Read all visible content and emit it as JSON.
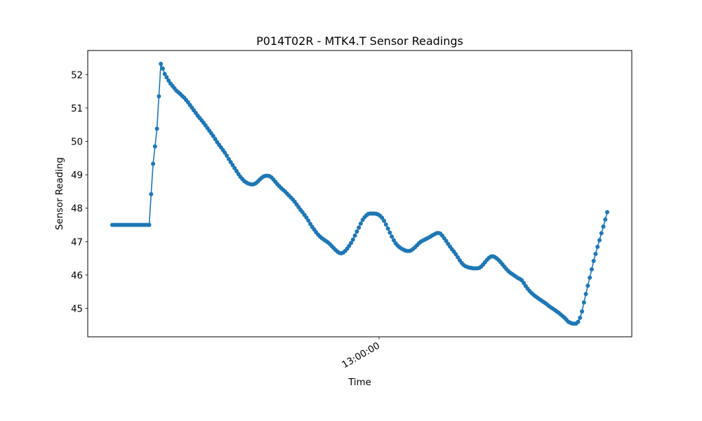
{
  "chart_data": {
    "type": "line",
    "title": "P014T02R - MTK4.T Sensor Readings",
    "xlabel": "Time",
    "ylabel": "Sensor Reading",
    "ylim": [
      44.15,
      52.72
    ],
    "y_ticks": [
      "45",
      "46",
      "47",
      "48",
      "49",
      "50",
      "51",
      "52"
    ],
    "x_ticks": [
      "13:00:00"
    ],
    "grid": false,
    "marker": "circle",
    "colors": {
      "series": "#1f77b4"
    },
    "series": [
      {
        "values": [
          47.5,
          47.5,
          47.5,
          47.5,
          47.5,
          47.5,
          47.5,
          47.5,
          47.5,
          47.5,
          47.5,
          47.5,
          47.5,
          47.5,
          47.5,
          47.5,
          47.5,
          47.5,
          47.5,
          47.5,
          48.42,
          49.33,
          49.85,
          50.38,
          51.35,
          52.32,
          52.18,
          52.02,
          51.92,
          51.82,
          51.73,
          51.66,
          51.59,
          51.52,
          51.47,
          51.42,
          51.36,
          51.31,
          51.24,
          51.17,
          51.09,
          51.01,
          50.93,
          50.85,
          50.77,
          50.7,
          50.63,
          50.56,
          50.48,
          50.4,
          50.32,
          50.24,
          50.16,
          50.07,
          49.98,
          49.9,
          49.82,
          49.74,
          49.66,
          49.57,
          49.47,
          49.38,
          49.29,
          49.2,
          49.11,
          49.02,
          48.94,
          48.87,
          48.81,
          48.77,
          48.74,
          48.72,
          48.71,
          48.72,
          48.75,
          48.8,
          48.86,
          48.91,
          48.95,
          48.97,
          48.97,
          48.96,
          48.92,
          48.86,
          48.79,
          48.72,
          48.66,
          48.6,
          48.55,
          48.5,
          48.44,
          48.38,
          48.32,
          48.26,
          48.19,
          48.11,
          48.03,
          47.95,
          47.88,
          47.8,
          47.72,
          47.63,
          47.53,
          47.44,
          47.36,
          47.28,
          47.21,
          47.15,
          47.1,
          47.06,
          47.02,
          46.98,
          46.93,
          46.87,
          46.81,
          46.75,
          46.7,
          46.66,
          46.65,
          46.67,
          46.72,
          46.79,
          46.87,
          46.96,
          47.06,
          47.18,
          47.3,
          47.42,
          47.54,
          47.65,
          47.73,
          47.79,
          47.83,
          47.84,
          47.84,
          47.84,
          47.83,
          47.81,
          47.77,
          47.71,
          47.62,
          47.51,
          47.39,
          47.27,
          47.15,
          47.04,
          46.95,
          46.88,
          46.83,
          46.79,
          46.76,
          46.73,
          46.72,
          46.72,
          46.74,
          46.78,
          46.83,
          46.89,
          46.95,
          47.0,
          47.03,
          47.06,
          47.09,
          47.12,
          47.15,
          47.19,
          47.22,
          47.25,
          47.26,
          47.24,
          47.18,
          47.1,
          47.02,
          46.93,
          46.85,
          46.77,
          46.7,
          46.62,
          46.53,
          46.44,
          46.36,
          46.3,
          46.26,
          46.24,
          46.22,
          46.21,
          46.2,
          46.2,
          46.2,
          46.21,
          46.25,
          46.31,
          46.38,
          46.45,
          46.51,
          46.55,
          46.56,
          46.54,
          46.5,
          46.45,
          46.39,
          46.32,
          46.25,
          46.18,
          46.12,
          46.07,
          46.03,
          45.99,
          45.95,
          45.91,
          45.88,
          45.84,
          45.76,
          45.67,
          45.59,
          45.52,
          45.46,
          45.41,
          45.36,
          45.32,
          45.28,
          45.24,
          45.2,
          45.16,
          45.12,
          45.07,
          45.03,
          44.99,
          44.95,
          44.91,
          44.87,
          44.82,
          44.77,
          44.72,
          44.66,
          44.6,
          44.57,
          44.55,
          44.54,
          44.55,
          44.6,
          44.72,
          44.91,
          45.18,
          45.43,
          45.68,
          45.92,
          46.17,
          46.42,
          46.63,
          46.84,
          47.04,
          47.25,
          47.45,
          47.66,
          47.88
        ]
      }
    ]
  }
}
